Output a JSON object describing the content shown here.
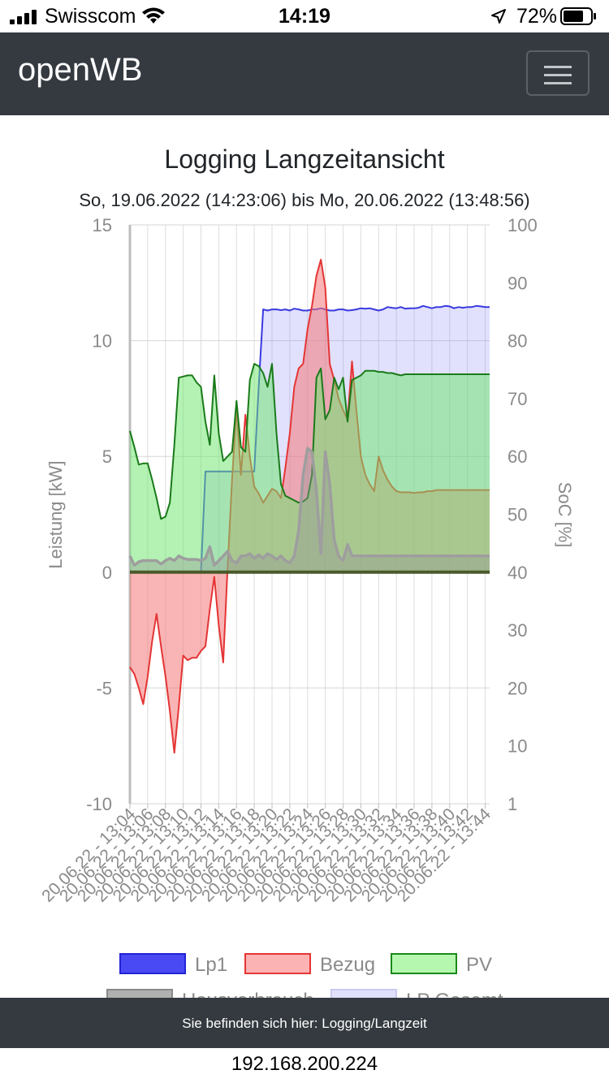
{
  "status_bar": {
    "carrier": "Swisscom",
    "time": "14:19",
    "battery": "72%"
  },
  "navbar": {
    "brand": "openWB"
  },
  "chart_title": "Logging Langzeitansicht",
  "chart_subtitle": "So, 19.06.2022 (14:23:06) bis Mo, 20.06.2022 (13:48:56)",
  "footer": {
    "location_text": "Sie befinden sich hier: Logging/Langzeit"
  },
  "address_bar": {
    "url": "192.168.200.224"
  },
  "colors": {
    "navbar_bg": "#343a40",
    "lp1": "#3333e6",
    "bezug": "#e53535",
    "pv": "#1a7a1a",
    "hausverbrauch": "#9e9e9e"
  },
  "chart_data": {
    "type": "area",
    "ylabel": "Leistung [kW]",
    "ylabel2": "SoC [%]",
    "ylim": [
      -10,
      15
    ],
    "yticks": [
      "15",
      "10",
      "5",
      "0",
      "-5",
      "-10"
    ],
    "y2ticks": [
      "100",
      "90",
      "80",
      "70",
      "60",
      "50",
      "40",
      "30",
      "20",
      "10",
      "1"
    ],
    "xtick_labels": [
      "20.06.22 - 13:04",
      "20.06.22 - 13:06",
      "20.06.22 - 13:08",
      "20.06.22 - 13:10",
      "20.06.22 - 13:12",
      "20.06.22 - 13:14",
      "20.06.22 - 13:16",
      "20.06.22 - 13:18",
      "20.06.22 - 13:20",
      "20.06.22 - 13:22",
      "20.06.22 - 13:24",
      "20.06.22 - 13:26",
      "20.06.22 - 13:28",
      "20.06.22 - 13:30",
      "20.06.22 - 13:32",
      "20.06.22 - 13:34",
      "20.06.22 - 13:36",
      "20.06.22 - 13:38",
      "20.06.22 - 13:40",
      "20.06.22 - 13:42",
      "20.06.22 - 13:44"
    ],
    "x_minutes": [
      0,
      0.5,
      1,
      1.5,
      2,
      2.5,
      3,
      3.5,
      4,
      4.5,
      5,
      5.5,
      6,
      6.5,
      7,
      7.5,
      8,
      8.5,
      9,
      9.5,
      10,
      10.5,
      11,
      11.5,
      12,
      12.5,
      13,
      13.5,
      14,
      14.5,
      15,
      15.5,
      16,
      16.5,
      17,
      17.5,
      18,
      18.5,
      19,
      19.5,
      20,
      20.5,
      21,
      21.5,
      22,
      22.5,
      23,
      23.5,
      24,
      24.5,
      25,
      25.5,
      26,
      26.5,
      27,
      27.5,
      28,
      28.5,
      29,
      29.5,
      30,
      30.5,
      31,
      31.5,
      32,
      32.5,
      33,
      33.5,
      34,
      34.5,
      35,
      35.5,
      36,
      36.5,
      37,
      37.5,
      38,
      38.5,
      39,
      39.5,
      40,
      40.5
    ],
    "series": [
      {
        "name": "Lp1",
        "values": [
          0,
          0,
          0,
          0,
          0,
          0,
          0,
          0,
          0,
          0,
          0,
          0,
          0,
          0,
          0,
          0,
          0,
          4.35,
          4.35,
          4.35,
          4.35,
          4.35,
          4.35,
          4.35,
          4.35,
          4.35,
          4.35,
          4.35,
          4.35,
          8.0,
          11.35,
          11.3,
          11.35,
          11.35,
          11.32,
          11.35,
          11.3,
          11.38,
          11.35,
          11.3,
          11.3,
          11.35,
          11.35,
          11.4,
          11.35,
          11.3,
          11.3,
          11.35,
          11.35,
          11.3,
          11.32,
          11.35,
          11.4,
          11.38,
          11.4,
          11.35,
          11.3,
          11.35,
          11.45,
          11.42,
          11.4,
          11.45,
          11.38,
          11.4,
          11.4,
          11.42,
          11.5,
          11.45,
          11.4,
          11.45,
          11.45,
          11.5,
          11.48,
          11.4,
          11.45,
          11.42,
          11.45,
          11.45,
          11.5,
          11.48,
          11.45,
          11.45
        ]
      },
      {
        "name": "Bezug",
        "values": [
          -4.1,
          -4.4,
          -5.0,
          -5.7,
          -4.5,
          -3.0,
          -1.8,
          -3.2,
          -4.5,
          -6.0,
          -7.8,
          -5.8,
          -3.6,
          -3.8,
          -3.7,
          -3.7,
          -3.4,
          -3.2,
          -1.6,
          -0.2,
          -2.3,
          -3.9,
          0.2,
          4.0,
          7.1,
          4.2,
          6.8,
          5.0,
          3.7,
          3.4,
          3.0,
          3.3,
          3.6,
          3.5,
          3.2,
          4.5,
          6.0,
          8.0,
          8.8,
          9.0,
          10.5,
          11.5,
          12.8,
          13.5,
          12.3,
          9.0,
          8.3,
          7.5,
          7.0,
          6.6,
          9.1,
          7.0,
          5.0,
          4.2,
          3.8,
          3.5,
          5.0,
          4.4,
          4.0,
          3.7,
          3.5,
          3.45,
          3.45,
          3.45,
          3.42,
          3.45,
          3.45,
          3.5,
          3.5,
          3.55,
          3.55,
          3.55,
          3.55,
          3.55,
          3.55,
          3.55,
          3.55,
          3.55,
          3.55,
          3.55,
          3.55,
          3.55
        ]
      },
      {
        "name": "PV",
        "values": [
          6.1,
          5.4,
          4.65,
          4.7,
          4.7,
          4.0,
          3.2,
          2.3,
          2.4,
          3.0,
          5.5,
          8.4,
          8.45,
          8.5,
          8.5,
          8.2,
          8.0,
          6.5,
          5.5,
          8.5,
          6.0,
          4.8,
          5.0,
          5.2,
          7.4,
          5.4,
          5.2,
          8.3,
          9.0,
          8.9,
          8.6,
          8.0,
          9.0,
          6.0,
          3.8,
          3.3,
          3.2,
          3.1,
          3.0,
          3.05,
          3.2,
          4.2,
          8.4,
          8.8,
          6.6,
          7.0,
          8.4,
          7.9,
          8.4,
          6.5,
          8.3,
          8.4,
          8.5,
          8.7,
          8.7,
          8.7,
          8.65,
          8.65,
          8.6,
          8.6,
          8.55,
          8.5,
          8.55,
          8.55,
          8.55,
          8.55,
          8.55,
          8.55,
          8.55,
          8.55,
          8.55,
          8.55,
          8.55,
          8.55,
          8.55,
          8.55,
          8.55,
          8.55,
          8.55,
          8.55,
          8.55,
          8.55
        ]
      },
      {
        "name": "Hausverbrauch",
        "values": [
          0.7,
          0.3,
          0.45,
          0.5,
          0.5,
          0.5,
          0.5,
          0.35,
          0.5,
          0.6,
          0.5,
          0.7,
          0.6,
          0.55,
          0.55,
          0.55,
          0.5,
          0.6,
          1.1,
          0.3,
          0.5,
          0.7,
          0.9,
          0.5,
          0.4,
          0.7,
          0.7,
          0.8,
          0.6,
          0.75,
          0.6,
          0.8,
          0.7,
          0.55,
          0.7,
          0.5,
          0.4,
          0.7,
          1.8,
          4.2,
          5.35,
          5.2,
          3.5,
          0.8,
          5.2,
          3.8,
          1.4,
          0.7,
          0.5,
          1.2,
          0.7,
          0.7,
          0.7,
          0.7,
          0.7,
          0.7,
          0.7,
          0.7,
          0.7,
          0.7,
          0.7,
          0.7,
          0.7,
          0.7,
          0.7,
          0.7,
          0.7,
          0.7,
          0.7,
          0.7,
          0.7,
          0.7,
          0.7,
          0.7,
          0.7,
          0.7,
          0.7,
          0.7,
          0.7,
          0.7,
          0.7,
          0.7
        ]
      }
    ],
    "legend": [
      {
        "name": "Lp1",
        "fill": "#4a4af5",
        "stroke": "#2323d6"
      },
      {
        "name": "Bezug",
        "fill": "#fcb3b3",
        "stroke": "#e53535"
      },
      {
        "name": "PV",
        "fill": "#b6f7b0",
        "stroke": "#1a8a1a"
      },
      {
        "name": "Hausverbrauch",
        "fill": "#b0b0b0",
        "stroke": "#8a8a8a"
      },
      {
        "name": "LP Gesamt",
        "fill": "#e0e0fb",
        "stroke": "#c9c9f0"
      }
    ]
  }
}
